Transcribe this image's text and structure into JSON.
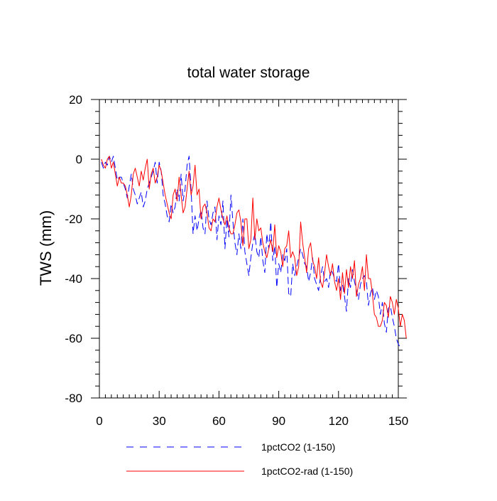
{
  "chart_data": {
    "type": "line",
    "title": "total water storage",
    "xlabel": "",
    "ylabel": "TWS  (mm)",
    "xlim": [
      0,
      150
    ],
    "ylim": [
      -80,
      20
    ],
    "x_ticks": [
      0,
      30,
      60,
      90,
      120,
      150
    ],
    "y_ticks": [
      20,
      0,
      -20,
      -40,
      -60,
      -80
    ],
    "x_tick_labels": [
      "0",
      "30",
      "60",
      "90",
      "120",
      "150"
    ],
    "y_tick_labels": [
      "20",
      "0",
      "-20",
      "-40",
      "-60",
      "-80"
    ],
    "grid": false,
    "legend_position": "bottom",
    "series": [
      {
        "name": "1pctCO2 (1-150)",
        "color": "#0000ff",
        "dash": "dashed",
        "x_start": 1,
        "values": [
          -1,
          -3,
          -1,
          -2,
          1,
          -1,
          1,
          -3,
          -7,
          -6,
          -6,
          -8,
          -10,
          -13,
          -9,
          -5,
          -10,
          -12,
          -15,
          -13,
          -11,
          -16,
          -14,
          -10,
          -8,
          -6,
          -4,
          -1,
          -8,
          -1,
          -4,
          -12,
          -15,
          -19,
          -21,
          -15,
          -18,
          -16,
          -10,
          -14,
          -5,
          -14,
          -10,
          -2,
          1,
          -10,
          -25,
          -19,
          -24,
          -20,
          -17,
          -23,
          -25,
          -14,
          -20,
          -22,
          -18,
          -16,
          -27,
          -19,
          -22,
          -14,
          -30,
          -20,
          -26,
          -12,
          -21,
          -28,
          -32,
          -25,
          -30,
          -20,
          -31,
          -35,
          -39,
          -33,
          -28,
          -25,
          -31,
          -33,
          -26,
          -34,
          -38,
          -25,
          -30,
          -21,
          -34,
          -29,
          -43,
          -35,
          -38,
          -32,
          -34,
          -30,
          -45,
          -46,
          -35,
          -39,
          -36,
          -33,
          -30,
          -32,
          -35,
          -36,
          -41,
          -38,
          -33,
          -40,
          -42,
          -44,
          -39,
          -36,
          -41,
          -40,
          -43,
          -37,
          -38,
          -40,
          -41,
          -35,
          -44,
          -42,
          -46,
          -51,
          -40,
          -43,
          -37,
          -41,
          -44,
          -47,
          -42,
          -40,
          -39,
          -41,
          -49,
          -45,
          -43,
          -47,
          -44,
          -46,
          -52,
          -48,
          -55,
          -58,
          -50,
          -49,
          -53,
          -56,
          -60,
          -62,
          -63
        ]
      },
      {
        "name": "1pctCO2-rad (1-150)",
        "color": "#ff0000",
        "dash": "solid",
        "x_start": 1,
        "values": [
          0,
          -2,
          -3,
          0,
          1,
          -3,
          -1,
          -5,
          -9,
          -6,
          -8,
          -8,
          -9,
          -12,
          -16,
          -12,
          -5,
          -3,
          -6,
          -9,
          -4,
          -7,
          -3,
          0,
          -10,
          -5,
          -3,
          -8,
          -6,
          -2,
          -4,
          -8,
          -12,
          -15,
          -18,
          -20,
          -12,
          -10,
          -14,
          -6,
          -12,
          -18,
          -16,
          -10,
          -4,
          -12,
          -9,
          -2,
          -12,
          -10,
          -20,
          -16,
          -15,
          -18,
          -23,
          -24,
          -20,
          -21,
          -16,
          -13,
          -17,
          -20,
          -22,
          -19,
          -23,
          -25,
          -25,
          -22,
          -18,
          -17,
          -21,
          -29,
          -20,
          -20,
          -30,
          -27,
          -13,
          -27,
          -20,
          -24,
          -23,
          -28,
          -31,
          -33,
          -30,
          -27,
          -31,
          -22,
          -33,
          -29,
          -31,
          -36,
          -30,
          -29,
          -24,
          -33,
          -31,
          -33,
          -39,
          -36,
          -21,
          -28,
          -33,
          -38,
          -30,
          -28,
          -34,
          -36,
          -40,
          -33,
          -41,
          -43,
          -38,
          -32,
          -36,
          -39,
          -35,
          -41,
          -44,
          -40,
          -47,
          -38,
          -45,
          -37,
          -43,
          -36,
          -40,
          -34,
          -46,
          -42,
          -40,
          -36,
          -44,
          -32,
          -40,
          -40,
          -45,
          -52,
          -53,
          -56,
          -56,
          -54,
          -48,
          -49,
          -53,
          -46,
          -48,
          -52,
          -47,
          -50,
          -56,
          -52,
          -54,
          -60
        ]
      }
    ]
  }
}
